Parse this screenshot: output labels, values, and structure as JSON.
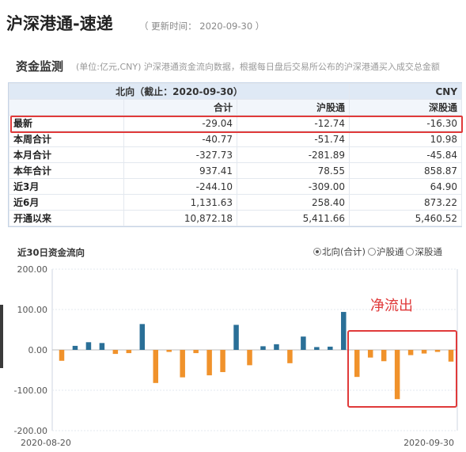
{
  "header": {
    "title": "沪深港通-速递",
    "update_time": "（ 更新时间： 2020-09-30 ）"
  },
  "section": {
    "title": "资金监测",
    "note": "(单位:亿元,CNY)  沪深港通资金流向数据，根据每日盘后交易所公布的沪深港通买入成交总金额"
  },
  "table": {
    "direction_header": "北向（截止：2020-09-30）",
    "currency": "CNY",
    "columns": [
      "合计",
      "沪股通",
      "深股通"
    ],
    "rows": [
      {
        "label": "最新",
        "values": [
          "-29.04",
          "-12.74",
          "-16.30"
        ]
      },
      {
        "label": "本周合计",
        "values": [
          "-40.77",
          "-51.74",
          "10.98"
        ]
      },
      {
        "label": "本月合计",
        "values": [
          "-327.73",
          "-281.89",
          "-45.84"
        ]
      },
      {
        "label": "本年合计",
        "values": [
          "937.41",
          "78.55",
          "858.87"
        ]
      },
      {
        "label": "近3月",
        "values": [
          "-244.10",
          "-309.00",
          "64.90"
        ]
      },
      {
        "label": "近6月",
        "values": [
          "1,131.63",
          "258.40",
          "873.22"
        ]
      },
      {
        "label": "开通以来",
        "values": [
          "10,872.18",
          "5,411.66",
          "5,460.52"
        ]
      }
    ]
  },
  "chart_section": {
    "title": "近30日资金流向",
    "options": [
      {
        "label": "北向(合计)",
        "selected": true
      },
      {
        "label": "沪股通",
        "selected": false
      },
      {
        "label": "深股通",
        "selected": false
      }
    ]
  },
  "annotation": "净流出",
  "colors": {
    "positive": "#2a6f97",
    "negative": "#f0922b",
    "highlight": "#e03a3a",
    "header_bg": "#dfe9f5"
  },
  "chart_data": {
    "type": "bar",
    "title": "",
    "xlabel": "",
    "ylabel": "",
    "x_start_label": "2020-08-20",
    "x_end_label": "2020-09-30",
    "ylim": [
      -200,
      200
    ],
    "yticks": [
      "200.00",
      "100.00",
      "0.00",
      "-100.00",
      "-200.00"
    ],
    "yticks_values": [
      200,
      100,
      0,
      -100,
      -200
    ],
    "values": [
      -27,
      10,
      19,
      17,
      -10,
      -8,
      64,
      -82,
      -5,
      -68,
      -8,
      -63,
      -55,
      62,
      -38,
      9,
      14,
      -33,
      33,
      7,
      8,
      94,
      -67,
      -19,
      -28,
      -122,
      -13,
      -9,
      -5,
      -29
    ]
  }
}
